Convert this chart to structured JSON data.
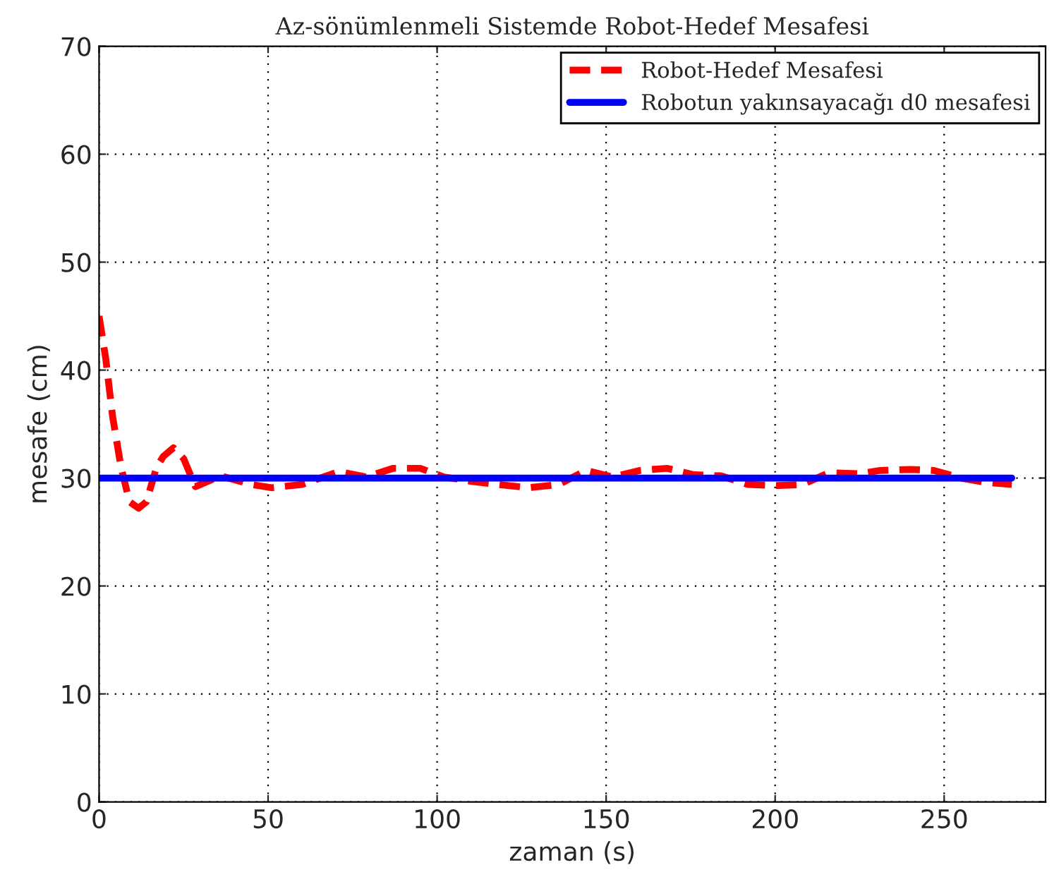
{
  "chart_data": {
    "type": "line",
    "title": "Az-sönümlenmeli Sistemde Robot-Hedef Mesafesi",
    "xlabel": "zaman (s)",
    "ylabel": "mesafe (cm)",
    "xlim": [
      0,
      280
    ],
    "ylim": [
      0,
      70
    ],
    "xticks": [
      0,
      50,
      100,
      150,
      200,
      250
    ],
    "yticks": [
      0,
      10,
      20,
      30,
      40,
      50,
      60,
      70
    ],
    "grid": true,
    "legend": "top right",
    "series": [
      {
        "name": "Robot-Hedef Mesafesi",
        "color": "#ff0000",
        "line_style": "dashed",
        "x": [
          0,
          2,
          4,
          6.5,
          9,
          11.7,
          14,
          17,
          19,
          22,
          25,
          28.5,
          36,
          45,
          51,
          60,
          71,
          79,
          87,
          95,
          102,
          110,
          118,
          127,
          136,
          144,
          152,
          160,
          168,
          176,
          184,
          192,
          201,
          208,
          216,
          225,
          231,
          240,
          247,
          255,
          262,
          270
        ],
        "values": [
          45,
          41,
          35.7,
          31,
          27.8,
          27.2,
          27.8,
          31,
          32,
          32.8,
          31.8,
          29.2,
          30.2,
          29.4,
          29.1,
          29.4,
          30.6,
          30.1,
          30.9,
          30.9,
          30.1,
          29.7,
          29.4,
          29.1,
          29.4,
          30.7,
          30.1,
          30.7,
          30.9,
          30.3,
          30.2,
          29.4,
          29.3,
          29.4,
          30.5,
          30.4,
          30.7,
          30.8,
          30.7,
          30,
          29.6,
          29.4
        ]
      },
      {
        "name": "Robotun yakınsayacağı d0 mesafesi",
        "color": "#0000ff",
        "line_style": "solid",
        "x": [
          0,
          270
        ],
        "values": [
          30,
          30
        ]
      }
    ]
  }
}
